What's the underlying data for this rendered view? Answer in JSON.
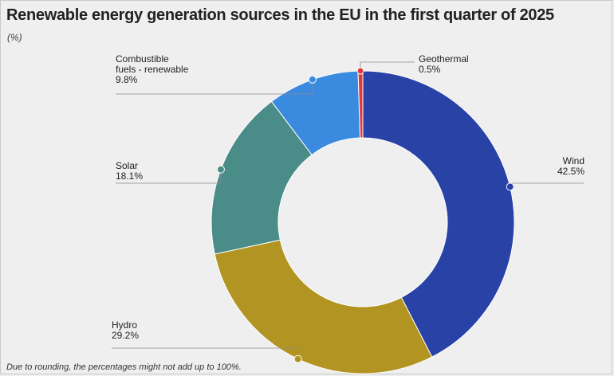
{
  "title": "Renewable energy generation sources in the EU in the first quarter of  2025",
  "subtitle": "(%)",
  "footnote": "Due to rounding, the percentages might not add up to 100%.",
  "chart_data": {
    "type": "pie",
    "variant": "donut",
    "unit": "%",
    "slices": [
      {
        "name": "Wind",
        "display_name": [
          "Wind"
        ],
        "value": 42.5,
        "value_label": "42.5%",
        "color": "#2842a6"
      },
      {
        "name": "Hydro",
        "display_name": [
          "Hydro"
        ],
        "value": 29.2,
        "value_label": "29.2%",
        "color": "#b29423"
      },
      {
        "name": "Solar",
        "display_name": [
          "Solar"
        ],
        "value": 18.1,
        "value_label": "18.1%",
        "color": "#4a8c88"
      },
      {
        "name": "Combustible fuels - renewable",
        "display_name": [
          "Combustible",
          "fuels - renewable"
        ],
        "value": 9.8,
        "value_label": "9.8%",
        "color": "#3a8be0"
      },
      {
        "name": "Geothermal",
        "display_name": [
          "Geothermal"
        ],
        "value": 0.5,
        "value_label": "0.5%",
        "color": "#e03a3e"
      }
    ]
  }
}
